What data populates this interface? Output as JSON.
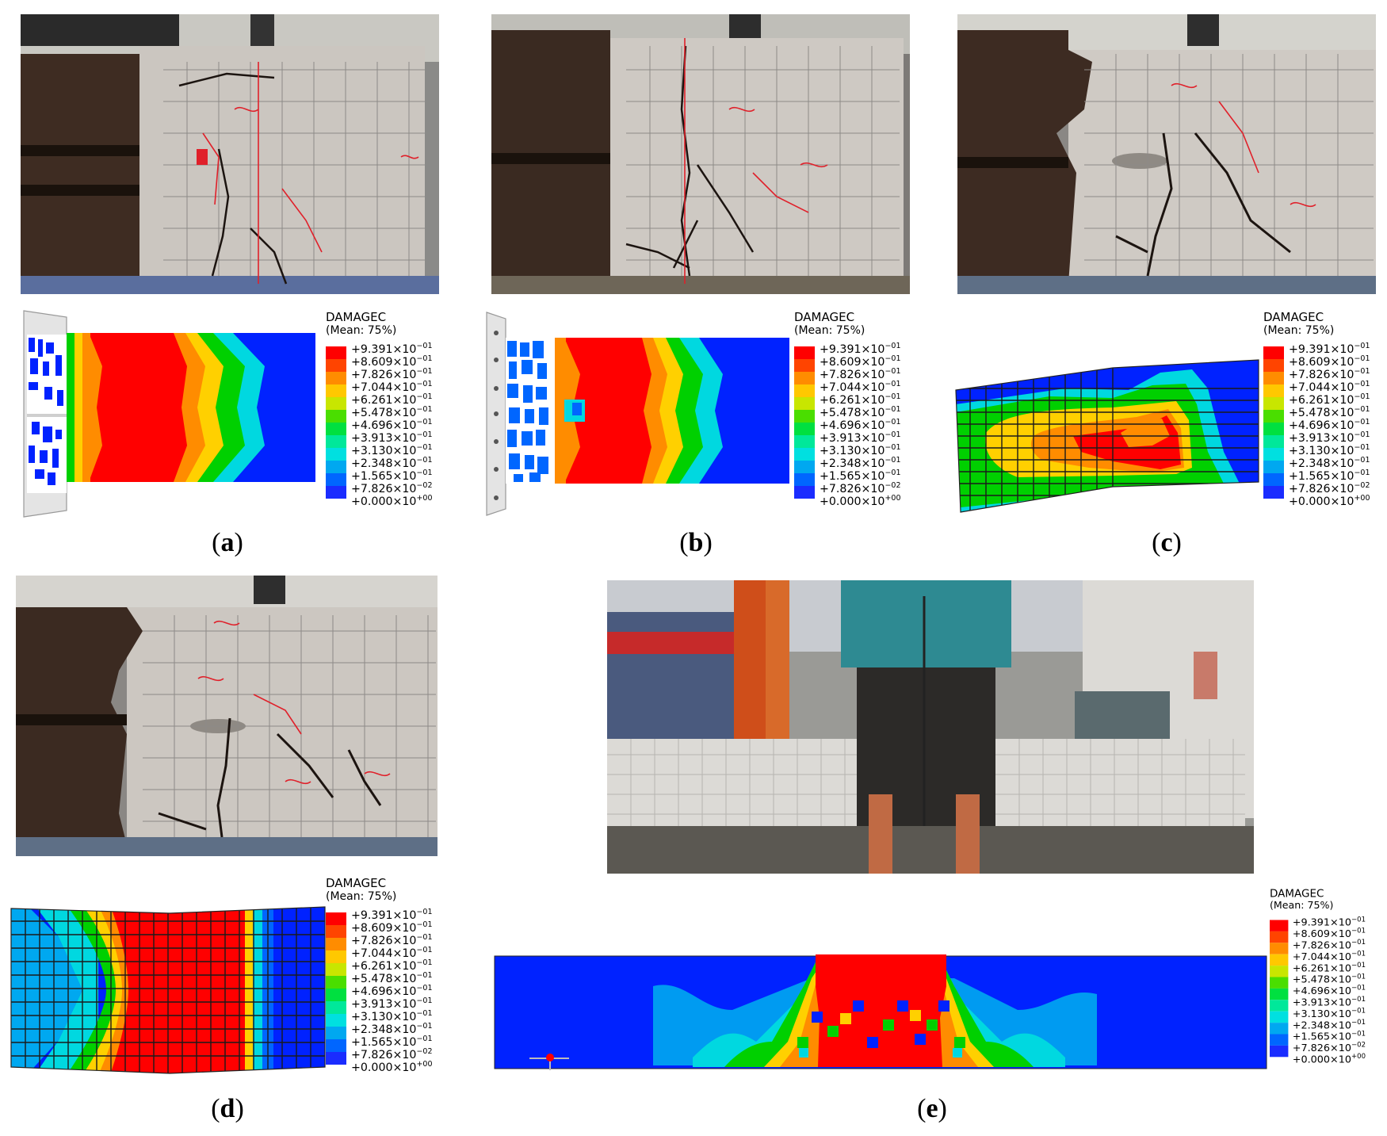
{
  "legend": {
    "title": "DAMAGEC",
    "subtitle": "(Mean: 75%)",
    "levels": [
      {
        "label": "+9.391×10",
        "exp": "−01",
        "color": "#ff0000"
      },
      {
        "label": "+8.609×10",
        "exp": "−01",
        "color": "#ff4400"
      },
      {
        "label": "+7.826×10",
        "exp": "−01",
        "color": "#ff8c00"
      },
      {
        "label": "+7.044×10",
        "exp": "−01",
        "color": "#ffc800"
      },
      {
        "label": "+6.261×10",
        "exp": "−01",
        "color": "#c8e600"
      },
      {
        "label": "+5.478×10",
        "exp": "−01",
        "color": "#4ade00"
      },
      {
        "label": "+4.696×10",
        "exp": "−01",
        "color": "#00e040"
      },
      {
        "label": "+3.913×10",
        "exp": "−01",
        "color": "#00e89a"
      },
      {
        "label": "+3.130×10",
        "exp": "−01",
        "color": "#00e0e0"
      },
      {
        "label": "+2.348×10",
        "exp": "−01",
        "color": "#00a8f0"
      },
      {
        "label": "+1.565×10",
        "exp": "−01",
        "color": "#0066ff"
      },
      {
        "label": "+7.826×10",
        "exp": "−02",
        "color": "#1a2cff"
      },
      {
        "label": "+0.000×10",
        "exp": "+00",
        "color": null
      }
    ]
  },
  "panels": [
    {
      "letter": "a"
    },
    {
      "letter": "b"
    },
    {
      "letter": "c"
    },
    {
      "letter": "d"
    },
    {
      "letter": "e"
    }
  ],
  "colors": {
    "red": "#ff0000",
    "orange": "#ff8c00",
    "yellow": "#ffd000",
    "green": "#00d000",
    "cyan": "#00d8e0",
    "blue": "#0022ff",
    "concrete": "#c9c3bc",
    "steel": "#3c2a20",
    "crack": "#1c1410",
    "marking": "#e0202a"
  }
}
